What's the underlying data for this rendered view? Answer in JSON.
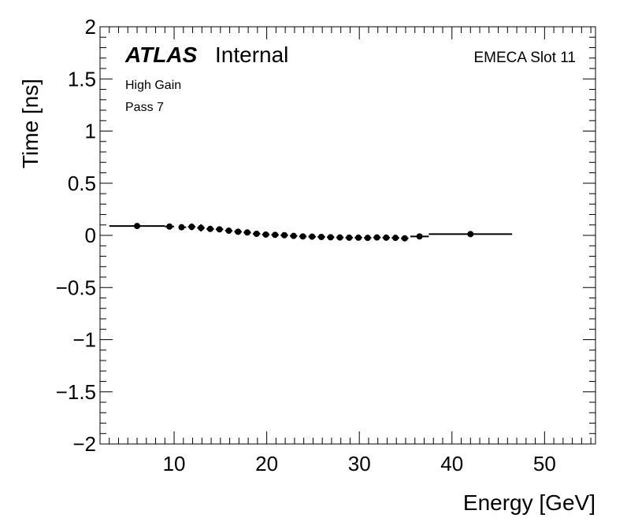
{
  "chart_data": {
    "type": "scatter",
    "title": "",
    "xlabel": "Energy [GeV]",
    "ylabel": "Time [ns]",
    "xlim": [
      2,
      55.5
    ],
    "ylim": [
      -2,
      2
    ],
    "x_ticks": [
      10,
      20,
      30,
      40,
      50
    ],
    "y_ticks": [
      2,
      1.5,
      1,
      0.5,
      0,
      -0.5,
      -1,
      -1.5,
      -2
    ],
    "y_tick_labels": [
      "2",
      "1.5",
      "1",
      "0.5",
      "0",
      "−0.5",
      "−1",
      "−1.5",
      "−2"
    ],
    "grid": false,
    "legend": "none",
    "annotations": {
      "atlas": "ATLAS",
      "internal": "Internal",
      "gain": "High Gain",
      "pass": "Pass 7",
      "slot": "EMECA Slot 11"
    },
    "series": [
      {
        "name": "EMECA Slot 11",
        "points": [
          {
            "x": 6.0,
            "y": 0.09,
            "xerr": [
              3.0,
              9.0
            ],
            "yerr": 0.012
          },
          {
            "x": 9.5,
            "y": 0.085,
            "xerr": [
              9.0,
              10.0
            ],
            "yerr": 0.012
          },
          {
            "x": 10.8,
            "y": 0.078,
            "xerr": [
              10.5,
              11.3
            ],
            "yerr": 0.028
          },
          {
            "x": 11.9,
            "y": 0.082,
            "xerr": [
              11.5,
              12.3
            ],
            "yerr": 0.032
          },
          {
            "x": 12.9,
            "y": 0.072,
            "xerr": [
              12.5,
              13.3
            ],
            "yerr": 0.035
          },
          {
            "x": 13.9,
            "y": 0.062,
            "xerr": [
              13.5,
              14.3
            ],
            "yerr": 0.028
          },
          {
            "x": 14.9,
            "y": 0.058,
            "xerr": [
              14.5,
              15.3
            ],
            "yerr": 0.025
          },
          {
            "x": 15.9,
            "y": 0.045,
            "xerr": [
              15.5,
              16.3
            ],
            "yerr": 0.022
          },
          {
            "x": 16.9,
            "y": 0.035,
            "xerr": [
              16.5,
              17.3
            ],
            "yerr": 0.02
          },
          {
            "x": 17.9,
            "y": 0.028,
            "xerr": [
              17.5,
              18.3
            ],
            "yerr": 0.018
          },
          {
            "x": 18.9,
            "y": 0.015,
            "xerr": [
              18.5,
              19.3
            ],
            "yerr": 0.016
          },
          {
            "x": 19.9,
            "y": 0.008,
            "xerr": [
              19.5,
              20.3
            ],
            "yerr": 0.015
          },
          {
            "x": 20.9,
            "y": 0.005,
            "xerr": [
              20.5,
              21.3
            ],
            "yerr": 0.015
          },
          {
            "x": 21.9,
            "y": 0.002,
            "xerr": [
              21.5,
              22.3
            ],
            "yerr": 0.015
          },
          {
            "x": 22.9,
            "y": -0.005,
            "xerr": [
              22.5,
              23.3
            ],
            "yerr": 0.015
          },
          {
            "x": 23.9,
            "y": -0.01,
            "xerr": [
              23.5,
              24.3
            ],
            "yerr": 0.015
          },
          {
            "x": 24.9,
            "y": -0.012,
            "xerr": [
              24.5,
              25.3
            ],
            "yerr": 0.015
          },
          {
            "x": 25.9,
            "y": -0.015,
            "xerr": [
              25.5,
              26.3
            ],
            "yerr": 0.015
          },
          {
            "x": 26.9,
            "y": -0.018,
            "xerr": [
              26.5,
              27.3
            ],
            "yerr": 0.015
          },
          {
            "x": 27.9,
            "y": -0.02,
            "xerr": [
              27.5,
              28.3
            ],
            "yerr": 0.015
          },
          {
            "x": 28.9,
            "y": -0.022,
            "xerr": [
              28.5,
              29.3
            ],
            "yerr": 0.015
          },
          {
            "x": 29.9,
            "y": -0.022,
            "xerr": [
              29.5,
              30.3
            ],
            "yerr": 0.015
          },
          {
            "x": 30.9,
            "y": -0.024,
            "xerr": [
              30.5,
              31.3
            ],
            "yerr": 0.015
          },
          {
            "x": 31.9,
            "y": -0.02,
            "xerr": [
              31.5,
              32.3
            ],
            "yerr": 0.015
          },
          {
            "x": 32.9,
            "y": -0.022,
            "xerr": [
              32.5,
              33.3
            ],
            "yerr": 0.015
          },
          {
            "x": 33.9,
            "y": -0.024,
            "xerr": [
              33.5,
              34.3
            ],
            "yerr": 0.015
          },
          {
            "x": 34.9,
            "y": -0.028,
            "xerr": [
              34.5,
              35.3
            ],
            "yerr": 0.015
          },
          {
            "x": 36.5,
            "y": -0.01,
            "xerr": [
              35.5,
              37.5
            ],
            "yerr": 0.012
          },
          {
            "x": 42.0,
            "y": 0.012,
            "xerr": [
              37.5,
              46.5
            ],
            "yerr": 0.012
          }
        ]
      }
    ]
  }
}
